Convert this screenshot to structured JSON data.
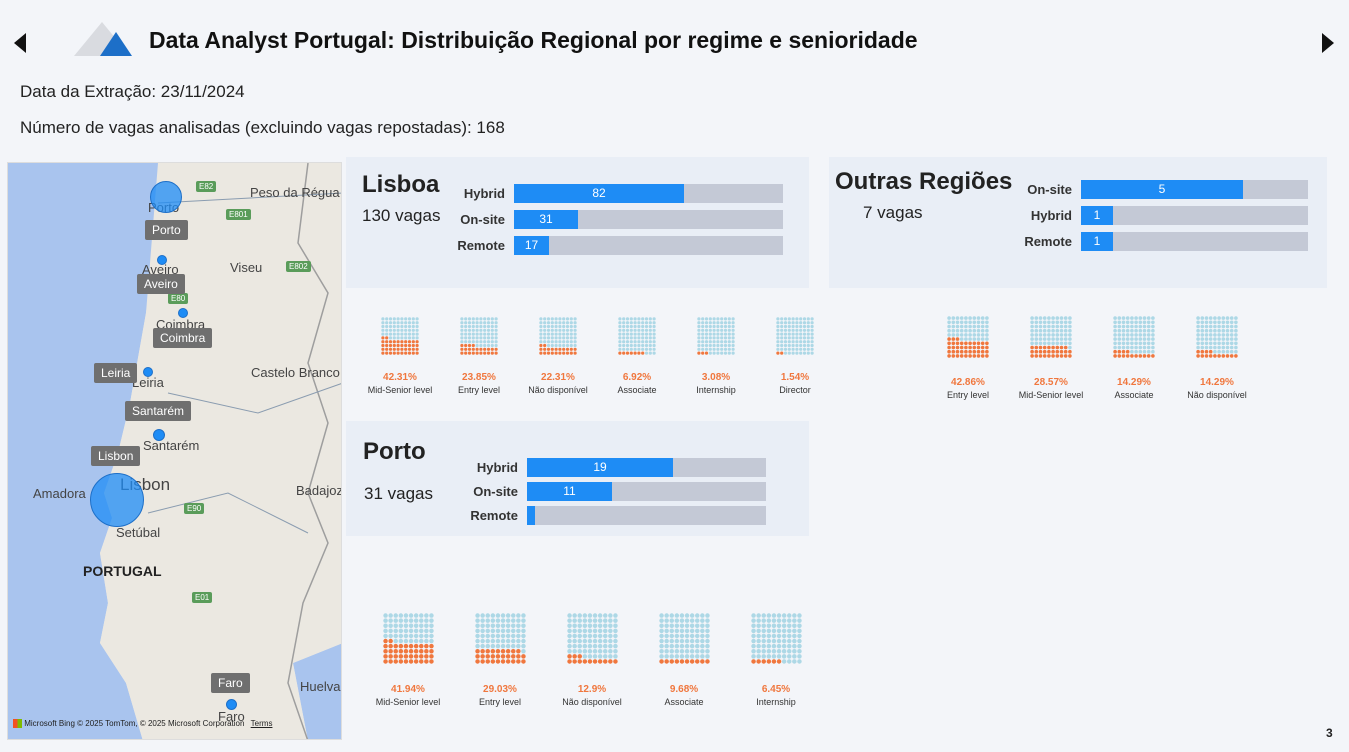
{
  "header": {
    "title": "Data Analyst Portugal: Distribuição Regional por regime e senioridade",
    "extraction_date": "Data da Extração: 23/11/2024",
    "jobs_analyzed": "Número de vagas analisadas (excluindo vagas repostadas): 168"
  },
  "colors": {
    "accent": "#1e8cf5",
    "track": "#c4c9d6",
    "waffle_on": "#f0773e",
    "waffle_off": "#add8e6",
    "panel": "#e9eef6"
  },
  "map": {
    "cities": [
      "Porto",
      "Aveiro",
      "Coimbra",
      "Leiria",
      "Santarém",
      "Lisbon",
      "Faro"
    ],
    "place_labels": [
      "Peso da Régua",
      "Viseu",
      "Castelo Branco",
      "Badajoz",
      "Amadora",
      "Lisbon",
      "Setúbal",
      "Huelva",
      "Aveiro",
      "Coimbra",
      "Leiria",
      "Santarém",
      "Porto",
      "Faro"
    ],
    "country_label": "PORTUGAL",
    "road_shields": [
      "E82",
      "E801",
      "E802",
      "E80",
      "E90",
      "E01"
    ],
    "attribution_brand": "Microsoft Bing",
    "attribution": "© 2025 TomTom, © 2025 Microsoft Corporation",
    "terms_link": "Terms"
  },
  "lisboa": {
    "name": "Lisboa",
    "count": "130 vagas",
    "bars": [
      {
        "label": "Hybrid",
        "value": 82,
        "value_label": "82"
      },
      {
        "label": "On-site",
        "value": 31,
        "value_label": "31"
      },
      {
        "label": "Remote",
        "value": 17,
        "value_label": "17"
      }
    ],
    "bar_max": 130,
    "waffles": [
      {
        "pct": "42.31%",
        "value": 42.31,
        "label": "Mid-Senior level"
      },
      {
        "pct": "23.85%",
        "value": 23.85,
        "label": "Entry level"
      },
      {
        "pct": "22.31%",
        "value": 22.31,
        "label": "Não disponível"
      },
      {
        "pct": "6.92%",
        "value": 6.92,
        "label": "Associate"
      },
      {
        "pct": "3.08%",
        "value": 3.08,
        "label": "Internship"
      },
      {
        "pct": "1.54%",
        "value": 1.54,
        "label": "Director"
      }
    ]
  },
  "outras": {
    "name": "Outras Regiões",
    "count": "7 vagas",
    "bars": [
      {
        "label": "On-site",
        "value": 5,
        "value_label": "5"
      },
      {
        "label": "Hybrid",
        "value": 1,
        "value_label": "1"
      },
      {
        "label": "Remote",
        "value": 1,
        "value_label": "1"
      }
    ],
    "bar_max": 7,
    "waffles": [
      {
        "pct": "42.86%",
        "value": 42.86,
        "label": "Entry level"
      },
      {
        "pct": "28.57%",
        "value": 28.57,
        "label": "Mid-Senior level"
      },
      {
        "pct": "14.29%",
        "value": 14.29,
        "label": "Associate"
      },
      {
        "pct": "14.29%",
        "value": 14.29,
        "label": "Não disponível"
      }
    ]
  },
  "porto": {
    "name": "Porto",
    "count": "31 vagas",
    "bars": [
      {
        "label": "Hybrid",
        "value": 19,
        "value_label": "19"
      },
      {
        "label": "On-site",
        "value": 11,
        "value_label": "11"
      },
      {
        "label": "Remote",
        "value": 1,
        "value_label": ""
      }
    ],
    "bar_max": 31,
    "waffles": [
      {
        "pct": "41.94%",
        "value": 41.94,
        "label": "Mid-Senior level"
      },
      {
        "pct": "29.03%",
        "value": 29.03,
        "label": "Entry level"
      },
      {
        "pct": "12.9%",
        "value": 12.9,
        "label": "Não disponível"
      },
      {
        "pct": "9.68%",
        "value": 9.68,
        "label": "Associate"
      },
      {
        "pct": "6.45%",
        "value": 6.45,
        "label": "Internship"
      }
    ]
  },
  "page_number": "3"
}
